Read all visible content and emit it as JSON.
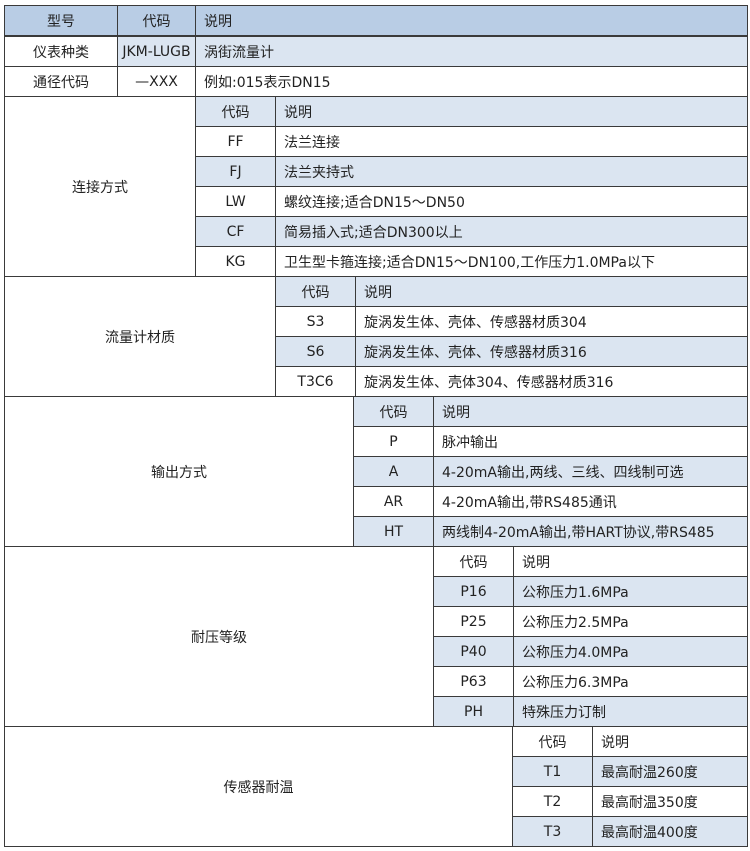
{
  "header": {
    "col1": "型号",
    "col2": "代码",
    "col3": "说明"
  },
  "top_rows": [
    {
      "label": "仪表种类",
      "code": "JKM-LUGB",
      "desc": "涡街流量计",
      "shaded": true
    },
    {
      "label": "通径代码",
      "code": "—XXX",
      "desc": "例如:015表示DN15",
      "shaded": false
    }
  ],
  "sub_header": {
    "code": "代码",
    "desc": "说明"
  },
  "sections": [
    {
      "label": "连接方式",
      "header_shaded": true,
      "rows": [
        {
          "code": "FF",
          "desc": "法兰连接",
          "shaded": false
        },
        {
          "code": "FJ",
          "desc": "法兰夹持式",
          "shaded": true
        },
        {
          "code": "LW",
          "desc": "螺纹连接;适合DN15～DN50",
          "shaded": false
        },
        {
          "code": "CF",
          "desc": "简易插入式;适合DN300以上",
          "shaded": true
        },
        {
          "code": "KG",
          "desc": "卫生型卡箍连接;适合DN15～DN100,工作压力1.0MPa以下",
          "shaded": false
        }
      ]
    },
    {
      "label": "流量计材质",
      "header_shaded": true,
      "rows": [
        {
          "code": "S3",
          "desc": "旋涡发生体、壳体、传感器材质304",
          "shaded": false
        },
        {
          "code": "S6",
          "desc": "旋涡发生体、壳体、传感器材质316",
          "shaded": true
        },
        {
          "code": "T3C6",
          "desc": "旋涡发生体、壳体304、传感器材质316",
          "shaded": false
        }
      ]
    },
    {
      "label": "输出方式",
      "header_shaded": true,
      "rows": [
        {
          "code": "P",
          "desc": "脉冲输出",
          "shaded": false
        },
        {
          "code": "A",
          "desc": "4-20mA输出,两线、三线、四线制可选",
          "shaded": true
        },
        {
          "code": "AR",
          "desc": "4-20mA输出,带RS485通讯",
          "shaded": false
        },
        {
          "code": "HT",
          "desc": "两线制4-20mA输出,带HART协议,带RS485",
          "shaded": true
        }
      ]
    },
    {
      "label": "耐压等级",
      "header_shaded": false,
      "rows": [
        {
          "code": "P16",
          "desc": "公称压力1.6MPa",
          "shaded": true
        },
        {
          "code": "P25",
          "desc": "公称压力2.5MPa",
          "shaded": false
        },
        {
          "code": "P40",
          "desc": "公称压力4.0MPa",
          "shaded": true
        },
        {
          "code": "P63",
          "desc": "公称压力6.3MPa",
          "shaded": false
        },
        {
          "code": "PH",
          "desc": "特殊压力订制",
          "shaded": true
        }
      ]
    },
    {
      "label": "传感器耐温",
      "header_shaded": false,
      "rows": [
        {
          "code": "T1",
          "desc": "最高耐温260度",
          "shaded": true
        },
        {
          "code": "T2",
          "desc": "最高耐温350度",
          "shaded": false
        },
        {
          "code": "T3",
          "desc": "最高耐温400度",
          "shaded": true
        }
      ]
    }
  ]
}
